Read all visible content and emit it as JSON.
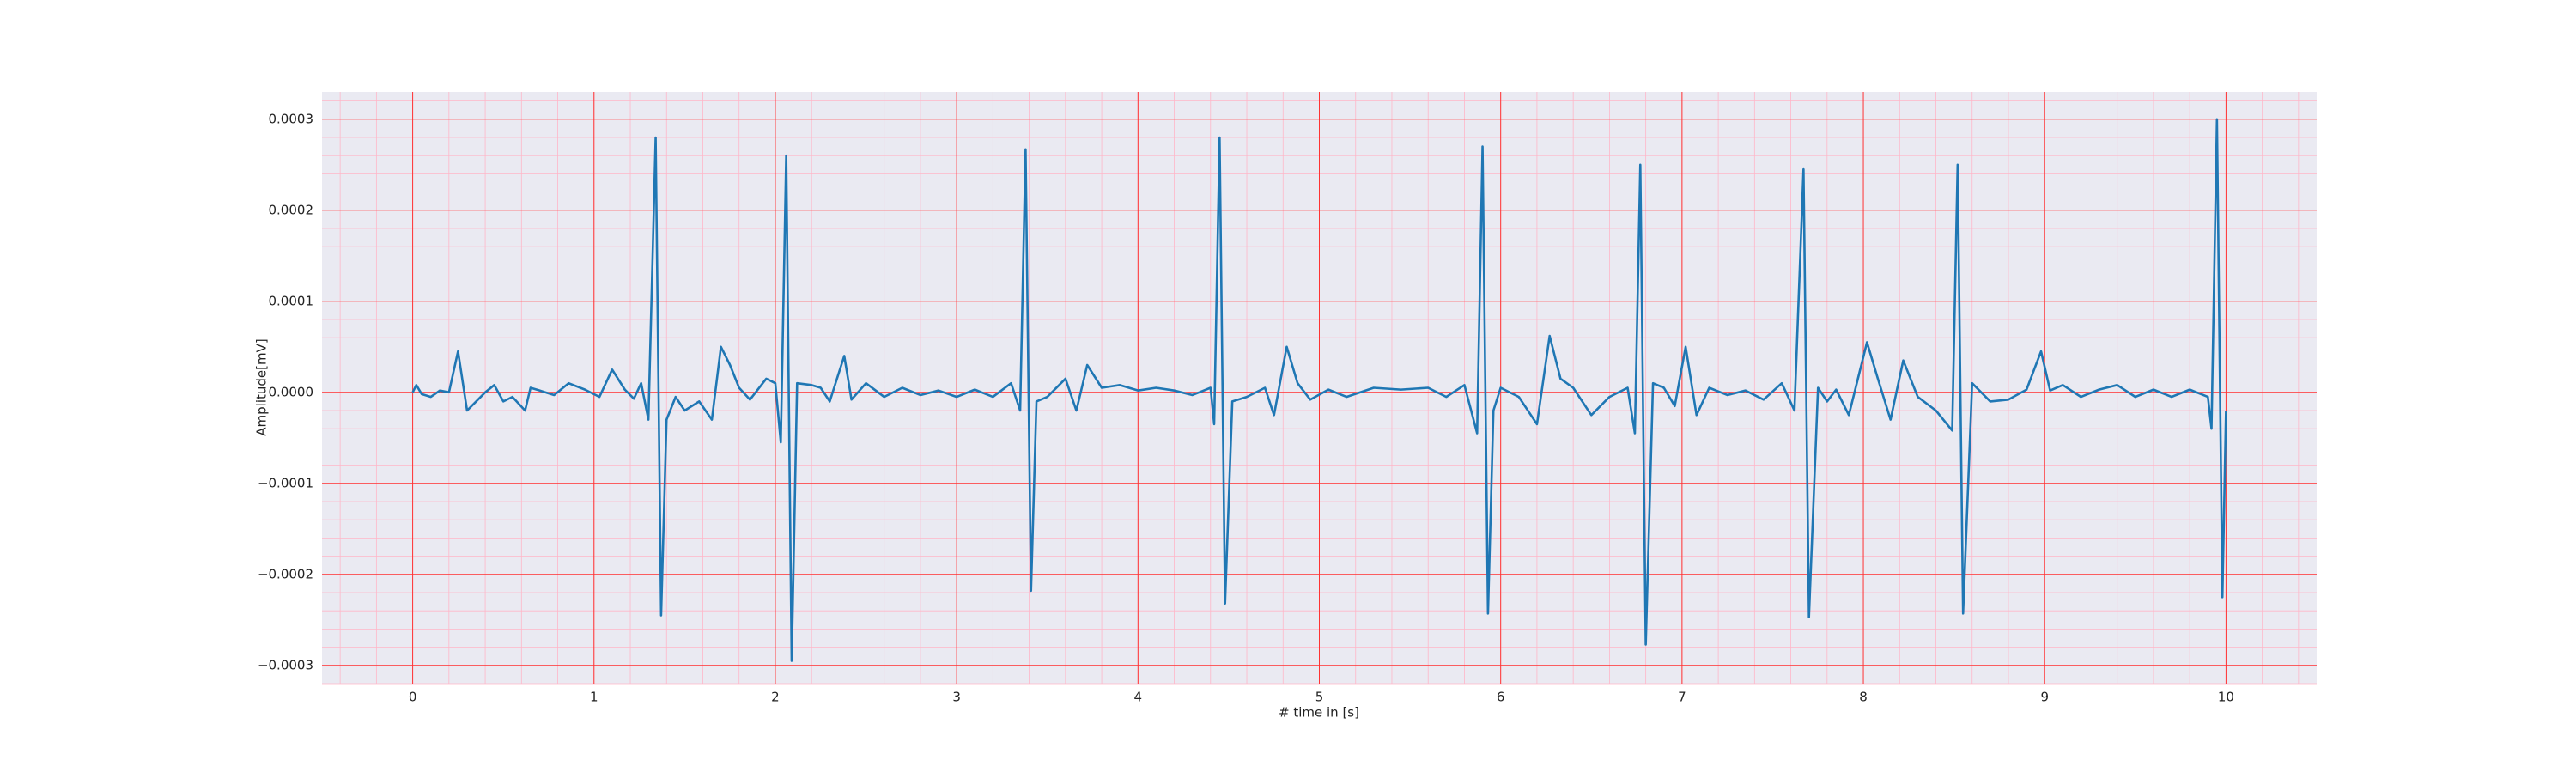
{
  "chart_data": {
    "type": "line",
    "xlabel": "# time in [s]",
    "ylabel": "Amplitude[mV]",
    "x": [
      0,
      0.02,
      0.05,
      0.1,
      0.15,
      0.2,
      0.25,
      0.3,
      0.35,
      0.4,
      0.45,
      0.5,
      0.55,
      0.62,
      0.65,
      0.7,
      0.78,
      0.86,
      0.95,
      1.03,
      1.1,
      1.17,
      1.22,
      1.26,
      1.3,
      1.34,
      1.37,
      1.4,
      1.45,
      1.5,
      1.58,
      1.65,
      1.7,
      1.75,
      1.8,
      1.86,
      1.95,
      2.0,
      2.03,
      2.06,
      2.09,
      2.12,
      2.2,
      2.25,
      2.3,
      2.38,
      2.42,
      2.5,
      2.6,
      2.7,
      2.8,
      2.9,
      3.0,
      3.1,
      3.2,
      3.3,
      3.35,
      3.38,
      3.41,
      3.44,
      3.5,
      3.6,
      3.66,
      3.72,
      3.8,
      3.9,
      4.0,
      4.1,
      4.2,
      4.3,
      4.4,
      4.42,
      4.45,
      4.48,
      4.52,
      4.6,
      4.7,
      4.75,
      4.82,
      4.88,
      4.95,
      5.05,
      5.15,
      5.3,
      5.45,
      5.6,
      5.7,
      5.8,
      5.87,
      5.9,
      5.93,
      5.96,
      6.0,
      6.1,
      6.2,
      6.27,
      6.33,
      6.4,
      6.5,
      6.6,
      6.7,
      6.74,
      6.77,
      6.8,
      6.84,
      6.9,
      6.96,
      7.02,
      7.08,
      7.15,
      7.25,
      7.35,
      7.45,
      7.55,
      7.62,
      7.67,
      7.7,
      7.75,
      7.8,
      7.85,
      7.92,
      8.02,
      8.08,
      8.15,
      8.22,
      8.3,
      8.4,
      8.49,
      8.52,
      8.55,
      8.6,
      8.7,
      8.8,
      8.9,
      8.98,
      9.03,
      9.1,
      9.2,
      9.3,
      9.4,
      9.5,
      9.6,
      9.7,
      9.8,
      9.9,
      9.92,
      9.95,
      9.98,
      10.0
    ],
    "series": [
      {
        "color": "#1f77b4",
        "values": [
          0,
          8e-06,
          -2e-06,
          -5e-06,
          2e-06,
          0,
          4.5e-05,
          -2e-05,
          -1e-05,
          0,
          8e-06,
          -1e-05,
          -5e-06,
          -2e-05,
          5e-06,
          2e-06,
          -3e-06,
          1e-05,
          3e-06,
          -5e-06,
          2.5e-05,
          3e-06,
          -7e-06,
          1e-05,
          -3e-05,
          0.00028,
          -0.000245,
          -3e-05,
          -5e-06,
          -2e-05,
          -1e-05,
          -3e-05,
          5e-05,
          3e-05,
          5e-06,
          -8e-06,
          1.5e-05,
          1e-05,
          -5.5e-05,
          0.00026,
          -0.000295,
          1e-05,
          8e-06,
          5e-06,
          -1e-05,
          4e-05,
          -8e-06,
          1e-05,
          -5e-06,
          5e-06,
          -3e-06,
          2e-06,
          -5e-06,
          3e-06,
          -5e-06,
          1e-05,
          -2e-05,
          0.000267,
          -0.000218,
          -1e-05,
          -5e-06,
          1.5e-05,
          -2e-05,
          3e-05,
          5e-06,
          8e-06,
          2e-06,
          5e-06,
          2e-06,
          -3e-06,
          5e-06,
          -3.5e-05,
          0.00028,
          -0.000232,
          -1e-05,
          -5e-06,
          5e-06,
          -2.5e-05,
          5e-05,
          1e-05,
          -8e-06,
          3e-06,
          -5e-06,
          5e-06,
          3e-06,
          5e-06,
          -5e-06,
          8e-06,
          -4.5e-05,
          0.00027,
          -0.000243,
          -2e-05,
          5e-06,
          -5e-06,
          -3.5e-05,
          6.2e-05,
          1.5e-05,
          5e-06,
          -2.5e-05,
          -5e-06,
          5e-06,
          -4.5e-05,
          0.00025,
          -0.000277,
          1e-05,
          5e-06,
          -1.5e-05,
          5e-05,
          -2.5e-05,
          5e-06,
          -3e-06,
          2e-06,
          -8e-06,
          1e-05,
          -2e-05,
          0.000245,
          -0.000247,
          5e-06,
          -1e-05,
          3e-06,
          -2.5e-05,
          5.5e-05,
          1.5e-05,
          -3e-05,
          3.5e-05,
          -5e-06,
          -2e-05,
          -4.2e-05,
          0.00025,
          -0.000243,
          1e-05,
          -1e-05,
          -8e-06,
          3e-06,
          4.5e-05,
          2e-06,
          8e-06,
          -5e-06,
          3e-06,
          8e-06,
          -5e-06,
          3e-06,
          -5e-06,
          3e-06,
          -5e-06,
          -4e-05,
          0.0003,
          -0.000225,
          -2e-05
        ]
      }
    ],
    "xlim": [
      -0.5,
      10.5
    ],
    "xticks": [
      0,
      1,
      2,
      3,
      4,
      5,
      6,
      7,
      8,
      9,
      10
    ],
    "ylim": [
      -0.00032,
      0.00033
    ],
    "yticks": [
      {
        "value": -0.0003,
        "label": "−0.0003"
      },
      {
        "value": -0.0002,
        "label": "−0.0002"
      },
      {
        "value": -0.0001,
        "label": "−0.0001"
      },
      {
        "value": 0,
        "label": "0.0000"
      },
      0.0001,
      0.0002,
      0.0003
    ],
    "grid": true,
    "grid_color": "#ff3333",
    "minor_grid": 5,
    "minor_grid_color": "#ffb6c8",
    "background": "#eaeaf2"
  }
}
